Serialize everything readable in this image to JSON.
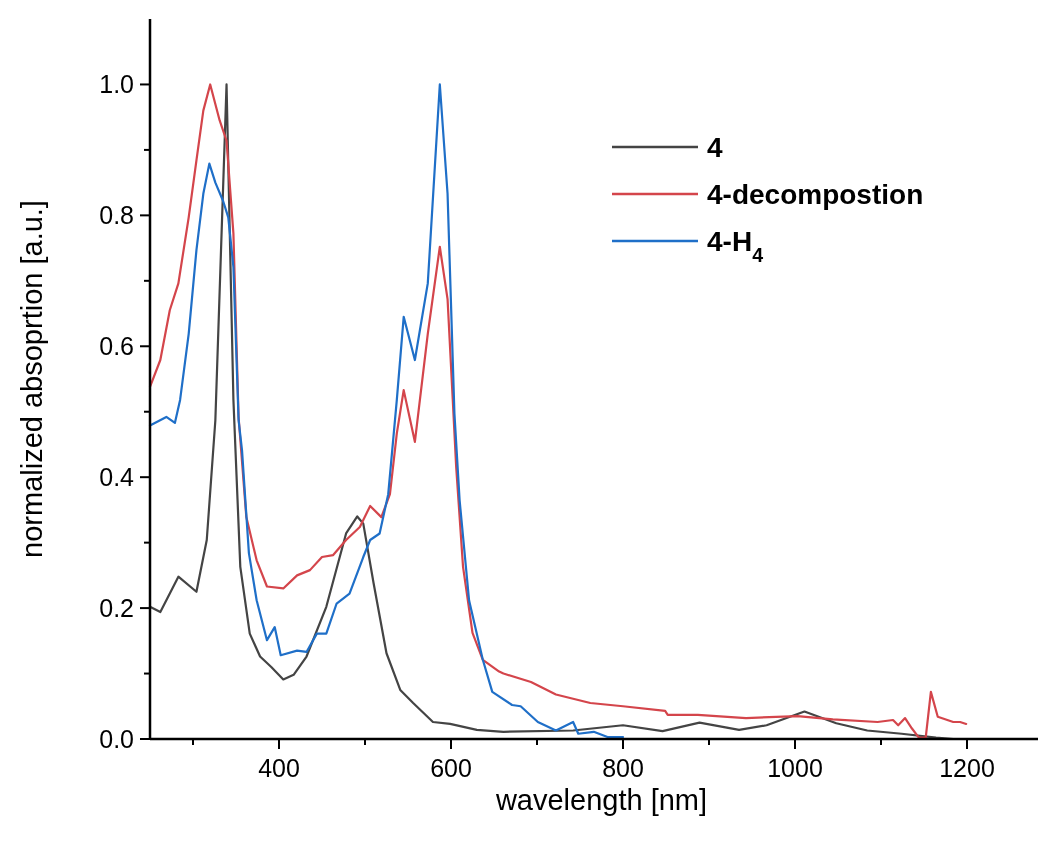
{
  "chart_data": {
    "type": "line",
    "xlabel": "wavelength [nm]",
    "ylabel": "normalized absoprtion [a.u.]",
    "xlim": [
      250,
      1300
    ],
    "ylim": [
      0,
      1.1
    ],
    "xticks": [
      {
        "value": 300,
        "label": null
      },
      400,
      {
        "value": 500,
        "label": null
      },
      600,
      {
        "value": 700,
        "label": null
      },
      800,
      {
        "value": 900,
        "label": null
      },
      1000,
      {
        "value": 1100,
        "label": null
      },
      1200
    ],
    "yticks": [
      {
        "value": 0,
        "label": "0.0"
      },
      {
        "value": 0.1,
        "label": null
      },
      {
        "value": 0.2,
        "label": "0.2"
      },
      {
        "value": 0.3,
        "label": null
      },
      {
        "value": 0.4,
        "label": "0.4"
      },
      {
        "value": 0.5,
        "label": null
      },
      {
        "value": 0.6,
        "label": "0.6"
      },
      {
        "value": 0.7,
        "label": null
      },
      {
        "value": 0.8,
        "label": "0.8"
      },
      {
        "value": 0.9,
        "label": null
      },
      {
        "value": 1.0,
        "label": "1.0"
      }
    ],
    "legend": "top right",
    "grid": false,
    "marker": "none",
    "line_style": "solid",
    "series": [
      {
        "name": "4",
        "color": "#444444",
        "x": [
          250,
          262,
          283,
          304,
          316,
          326,
          339,
          347,
          355,
          366,
          378,
          391,
          405,
          417,
          432,
          455,
          478,
          491,
          498,
          510,
          525,
          541,
          556,
          579,
          599,
          630,
          661,
          742,
          800,
          846,
          889,
          935,
          967,
          1011,
          1048,
          1084,
          1124,
          1164,
          1184
        ],
        "values": [
          0.202,
          0.194,
          0.248,
          0.225,
          0.304,
          0.487,
          1.0,
          0.518,
          0.263,
          0.161,
          0.126,
          0.11,
          0.091,
          0.098,
          0.126,
          0.202,
          0.314,
          0.34,
          0.329,
          0.238,
          0.131,
          0.075,
          0.055,
          0.026,
          0.023,
          0.014,
          0.011,
          0.013,
          0.021,
          0.012,
          0.025,
          0.014,
          0.021,
          0.042,
          0.024,
          0.013,
          0.008,
          0.002,
          0.0
        ]
      },
      {
        "name": "4-decompostion",
        "color": "#d4454b",
        "x": [
          250,
          262,
          273,
          283,
          295,
          304,
          312,
          320,
          331,
          339,
          347,
          353,
          362,
          374,
          386,
          405,
          421,
          436,
          450,
          463,
          478,
          494,
          506,
          519,
          529,
          537,
          545,
          558,
          573,
          587,
          596,
          602,
          606,
          614,
          625,
          637,
          656,
          661,
          693,
          722,
          762,
          800,
          849,
          852,
          887,
          943,
          1003,
          1044,
          1096,
          1114,
          1120,
          1128,
          1136,
          1144,
          1152,
          1158,
          1166,
          1184,
          1192,
          1199
        ],
        "values": [
          0.538,
          0.579,
          0.655,
          0.696,
          0.797,
          0.884,
          0.96,
          1.0,
          0.945,
          0.914,
          0.772,
          0.492,
          0.339,
          0.273,
          0.233,
          0.23,
          0.25,
          0.258,
          0.278,
          0.281,
          0.304,
          0.324,
          0.356,
          0.339,
          0.374,
          0.467,
          0.533,
          0.454,
          0.619,
          0.752,
          0.672,
          0.519,
          0.416,
          0.263,
          0.162,
          0.121,
          0.103,
          0.1,
          0.087,
          0.068,
          0.055,
          0.05,
          0.043,
          0.037,
          0.037,
          0.032,
          0.035,
          0.03,
          0.026,
          0.029,
          0.021,
          0.032,
          0.016,
          0.002,
          0.002,
          0.072,
          0.034,
          0.026,
          0.026,
          0.023
        ]
      },
      {
        "name": "4-H$_{4}$",
        "color": "#1f6fc8",
        "x": [
          250,
          269,
          279,
          285,
          295,
          304,
          312,
          319,
          326,
          335,
          341,
          347,
          353,
          357,
          365,
          374,
          386,
          395,
          402,
          421,
          432,
          444,
          455,
          467,
          482,
          498,
          506,
          517,
          527,
          537,
          545,
          558,
          573,
          587,
          596,
          604,
          610,
          621,
          637,
          648,
          671,
          681,
          701,
          722,
          742,
          748,
          766,
          782,
          800
        ],
        "values": [
          0.479,
          0.492,
          0.483,
          0.518,
          0.619,
          0.747,
          0.833,
          0.879,
          0.85,
          0.822,
          0.797,
          0.721,
          0.487,
          0.441,
          0.284,
          0.212,
          0.151,
          0.171,
          0.128,
          0.135,
          0.133,
          0.161,
          0.161,
          0.207,
          0.222,
          0.278,
          0.304,
          0.314,
          0.374,
          0.518,
          0.645,
          0.579,
          0.696,
          1.0,
          0.833,
          0.497,
          0.365,
          0.212,
          0.121,
          0.072,
          0.052,
          0.05,
          0.026,
          0.013,
          0.026,
          0.008,
          0.011,
          0.003,
          0.003
        ]
      }
    ]
  }
}
